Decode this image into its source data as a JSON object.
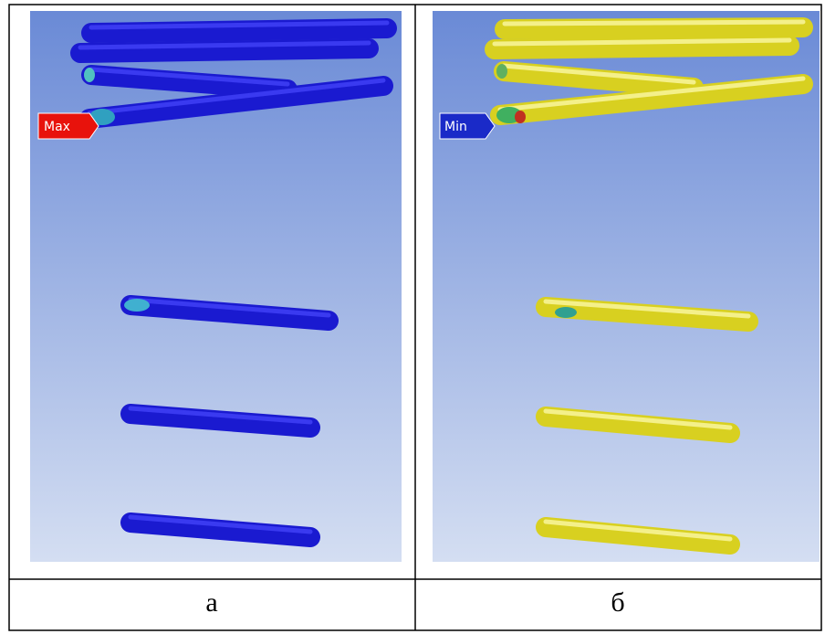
{
  "figure": {
    "panels": [
      {
        "marker": "Max",
        "caption": "а"
      },
      {
        "marker": "Min",
        "caption": "б"
      }
    ]
  }
}
